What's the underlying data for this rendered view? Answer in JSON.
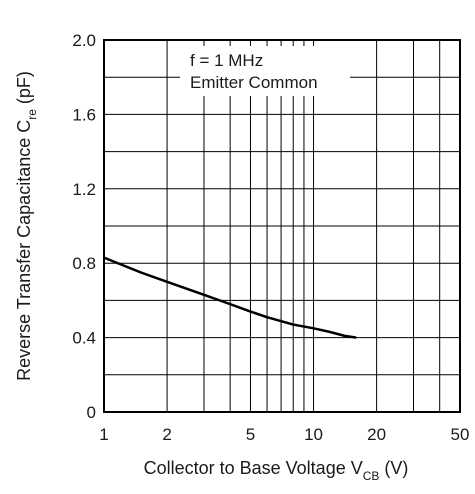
{
  "chart_data": {
    "type": "line",
    "x_scale": "log",
    "y_scale": "linear",
    "xlim": [
      1,
      50
    ],
    "ylim": [
      0,
      2.0
    ],
    "x_ticks": [
      1,
      2,
      5,
      10,
      20,
      50
    ],
    "x_tick_labels": [
      "1",
      "2",
      "5",
      "10",
      "20",
      "50"
    ],
    "x_gridlines": [
      1,
      2,
      3,
      4,
      5,
      6,
      7,
      8,
      9,
      10,
      20,
      30,
      40,
      50
    ],
    "y_ticks": [
      0,
      0.4,
      0.8,
      1.2,
      1.6,
      2.0
    ],
    "y_tick_labels": [
      "0",
      "0.4",
      "0.8",
      "1.2",
      "1.6",
      "2.0"
    ],
    "y_gridlines": [
      0,
      0.2,
      0.4,
      0.6,
      0.8,
      1.0,
      1.2,
      1.4,
      1.6,
      1.8,
      2.0
    ],
    "grid": true,
    "xlabel": {
      "main": "Collector to Base Voltage  V",
      "subscript": "CB",
      "unit": "  (V)"
    },
    "ylabel": {
      "main": "Reverse Transfer Capacitance  C",
      "subscript": "re",
      "unit": "  (pF)"
    },
    "annotations": [
      "f = 1 MHz",
      "Emitter Common"
    ],
    "series": [
      {
        "x": [
          1,
          1.5,
          2,
          3,
          4,
          5,
          6,
          8,
          10,
          12,
          14,
          16
        ],
        "y": [
          0.83,
          0.75,
          0.7,
          0.63,
          0.58,
          0.54,
          0.51,
          0.47,
          0.45,
          0.43,
          0.41,
          0.4
        ],
        "color": "#000000"
      }
    ]
  }
}
